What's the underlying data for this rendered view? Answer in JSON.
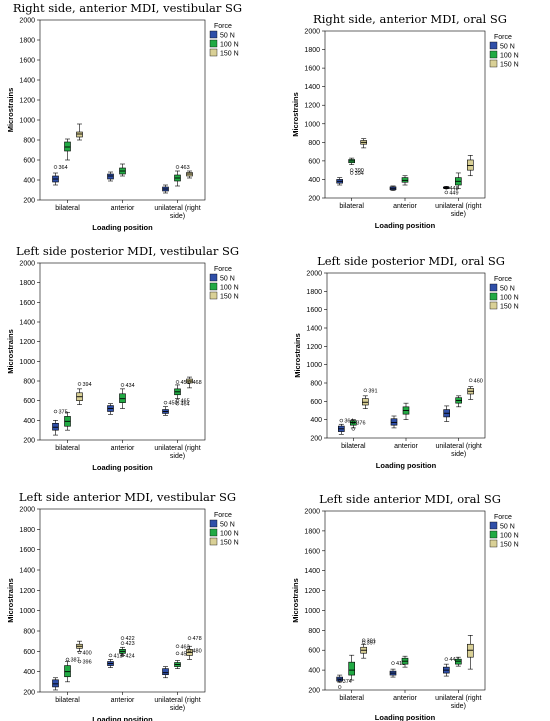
{
  "colors": {
    "50 N": "#2f4fa8",
    "100 N": "#22aa44",
    "150 N": "#d9d096"
  },
  "chart_data": [
    {
      "type": "box",
      "title": "Right side, anterior MDI, vestibular SG",
      "xlabel": "Loading position",
      "ylabel": "Microstrains",
      "ylim": [
        200,
        2000
      ],
      "yticks": [
        200,
        400,
        600,
        800,
        1000,
        1200,
        1400,
        1600,
        1800,
        2000
      ],
      "categories": [
        "bilateral",
        "anterior",
        "unilateral (right side)"
      ],
      "legend_title": "Force",
      "series": [
        {
          "name": "50 N",
          "boxes": [
            {
              "min": 350,
              "q1": 380,
              "median": 410,
              "q3": 440,
              "max": 470,
              "outliers": [
                {
                  "v": 530,
                  "label": "364"
                }
              ]
            },
            {
              "min": 390,
              "q1": 410,
              "median": 440,
              "q3": 460,
              "max": 480,
              "outliers": []
            },
            {
              "min": 270,
              "q1": 290,
              "median": 310,
              "q3": 330,
              "max": 350,
              "outliers": []
            }
          ]
        },
        {
          "name": "100 N",
          "boxes": [
            {
              "min": 600,
              "q1": 690,
              "median": 730,
              "q3": 780,
              "max": 810,
              "outliers": []
            },
            {
              "min": 440,
              "q1": 460,
              "median": 490,
              "q3": 520,
              "max": 560,
              "outliers": []
            },
            {
              "min": 340,
              "q1": 390,
              "median": 420,
              "q3": 450,
              "max": 490,
              "outliers": [
                {
                  "v": 530,
                  "label": "463"
                }
              ]
            }
          ]
        },
        {
          "name": "150 N",
          "boxes": [
            {
              "min": 800,
              "q1": 830,
              "median": 860,
              "q3": 880,
              "max": 960,
              "outliers": []
            },
            null,
            {
              "min": 420,
              "q1": 440,
              "median": 460,
              "q3": 475,
              "max": 490,
              "outliers": []
            }
          ]
        }
      ]
    },
    {
      "type": "box",
      "title": "Right side, anterior MDI, oral SG",
      "xlabel": "Loading position",
      "ylabel": "Microstrains",
      "ylim": [
        200,
        2000
      ],
      "yticks": [
        200,
        400,
        600,
        800,
        1000,
        1200,
        1400,
        1600,
        1800,
        2000
      ],
      "categories": [
        "bilateral",
        "anterior",
        "unilateral (right side)"
      ],
      "legend_title": "Force",
      "series": [
        {
          "name": "50 N",
          "boxes": [
            {
              "min": 340,
              "q1": 360,
              "median": 380,
              "q3": 400,
              "max": 420,
              "outliers": []
            },
            {
              "min": 280,
              "q1": 290,
              "median": 305,
              "q3": 320,
              "max": 330,
              "outliers": []
            },
            {
              "min": 300,
              "q1": 305,
              "median": 310,
              "q3": 318,
              "max": 325,
              "outliers": [
                {
                  "v": 310,
                  "label": "448"
                },
                {
                  "v": 260,
                  "label": "449"
                }
              ]
            }
          ]
        },
        {
          "name": "100 N",
          "boxes": [
            {
              "min": 560,
              "q1": 580,
              "median": 600,
              "q3": 615,
              "max": 630,
              "outliers": [
                {
                  "v": 500,
                  "label": "390"
                },
                {
                  "v": 470,
                  "label": "394"
                }
              ]
            },
            {
              "min": 340,
              "q1": 370,
              "median": 390,
              "q3": 420,
              "max": 440,
              "outliers": []
            },
            {
              "min": 300,
              "q1": 340,
              "median": 380,
              "q3": 420,
              "max": 470,
              "outliers": []
            }
          ]
        },
        {
          "name": "150 N",
          "boxes": [
            {
              "min": 740,
              "q1": 780,
              "median": 800,
              "q3": 820,
              "max": 840,
              "outliers": []
            },
            null,
            {
              "min": 440,
              "q1": 500,
              "median": 550,
              "q3": 610,
              "max": 660,
              "outliers": []
            }
          ]
        }
      ]
    },
    {
      "type": "box",
      "title": "Left side posterior MDI, vestibular SG",
      "xlabel": "Loading position",
      "ylabel": "Microstrains",
      "ylim": [
        200,
        2000
      ],
      "yticks": [
        200,
        400,
        600,
        800,
        1000,
        1200,
        1400,
        1600,
        1800,
        2000
      ],
      "categories": [
        "bilateral",
        "anterior",
        "unilateral (right side)"
      ],
      "legend_title": "Force",
      "series": [
        {
          "name": "50 N",
          "boxes": [
            {
              "min": 250,
              "q1": 300,
              "median": 330,
              "q3": 370,
              "max": 400,
              "outliers": [
                {
                  "v": 490,
                  "label": "375"
                }
              ]
            },
            {
              "min": 460,
              "q1": 490,
              "median": 520,
              "q3": 550,
              "max": 570,
              "outliers": []
            },
            {
              "min": 450,
              "q1": 470,
              "median": 490,
              "q3": 510,
              "max": 540,
              "outliers": [
                {
                  "v": 580,
                  "label": "450"
                }
              ]
            }
          ]
        },
        {
          "name": "100 N",
          "boxes": [
            {
              "min": 300,
              "q1": 340,
              "median": 390,
              "q3": 440,
              "max": 480,
              "outliers": []
            },
            {
              "min": 520,
              "q1": 580,
              "median": 620,
              "q3": 670,
              "max": 720,
              "outliers": [
                {
                  "v": 760,
                  "label": "434"
                }
              ]
            },
            {
              "min": 620,
              "q1": 660,
              "median": 690,
              "q3": 720,
              "max": 760,
              "outliers": [
                {
                  "v": 790,
                  "label": "451"
                },
                {
                  "v": 600,
                  "label": "465"
                },
                {
                  "v": 570,
                  "label": "464"
                }
              ]
            }
          ]
        },
        {
          "name": "150 N",
          "boxes": [
            {
              "min": 560,
              "q1": 600,
              "median": 640,
              "q3": 680,
              "max": 720,
              "outliers": [
                {
                  "v": 770,
                  "label": "394"
                }
              ]
            },
            null,
            {
              "min": 730,
              "q1": 780,
              "median": 800,
              "q3": 820,
              "max": 840,
              "outliers": [
                {
                  "v": 790,
                  "label": "468"
                }
              ]
            }
          ]
        }
      ]
    },
    {
      "type": "box",
      "title": "Left side posterior MDI, oral SG",
      "xlabel": "Loading position",
      "ylabel": "Microstrains",
      "ylim": [
        200,
        2000
      ],
      "yticks": [
        200,
        400,
        600,
        800,
        1000,
        1200,
        1400,
        1600,
        1800,
        2000
      ],
      "categories": [
        "bilateral",
        "anterior",
        "unilateral (right side)"
      ],
      "legend_title": "Force",
      "series": [
        {
          "name": "50 N",
          "boxes": [
            {
              "min": 240,
              "q1": 270,
              "median": 300,
              "q3": 330,
              "max": 350,
              "outliers": [
                {
                  "v": 390,
                  "label": "364"
                }
              ]
            },
            {
              "min": 310,
              "q1": 340,
              "median": 370,
              "q3": 410,
              "max": 440,
              "outliers": []
            },
            {
              "min": 380,
              "q1": 430,
              "median": 470,
              "q3": 510,
              "max": 550,
              "outliers": []
            }
          ]
        },
        {
          "name": "100 N",
          "boxes": [
            {
              "min": 310,
              "q1": 340,
              "median": 370,
              "q3": 390,
              "max": 400,
              "outliers": [
                {
                  "v": 370,
                  "label": "376"
                },
                {
                  "v": 300,
                  "label": ""
                }
              ]
            },
            {
              "min": 400,
              "q1": 460,
              "median": 500,
              "q3": 540,
              "max": 580,
              "outliers": []
            },
            {
              "min": 540,
              "q1": 580,
              "median": 610,
              "q3": 640,
              "max": 660,
              "outliers": []
            }
          ]
        },
        {
          "name": "150 N",
          "boxes": [
            {
              "min": 520,
              "q1": 560,
              "median": 590,
              "q3": 630,
              "max": 660,
              "outliers": [
                {
                  "v": 720,
                  "label": "391"
                }
              ]
            },
            null,
            {
              "min": 620,
              "q1": 680,
              "median": 710,
              "q3": 740,
              "max": 760,
              "outliers": [
                {
                  "v": 830,
                  "label": "460"
                }
              ]
            }
          ]
        }
      ]
    },
    {
      "type": "box",
      "title": "Left side anterior MDI, vestibular SG",
      "xlabel": "Loading position",
      "ylabel": "Microstrains",
      "ylim": [
        200,
        2000
      ],
      "yticks": [
        200,
        400,
        600,
        800,
        1000,
        1200,
        1400,
        1600,
        1800,
        2000
      ],
      "categories": [
        "bilateral",
        "anterior",
        "unilateral (right side)"
      ],
      "legend_title": "Force",
      "series": [
        {
          "name": "50 N",
          "boxes": [
            {
              "min": 220,
              "q1": 250,
              "median": 280,
              "q3": 320,
              "max": 340,
              "outliers": []
            },
            {
              "min": 440,
              "q1": 460,
              "median": 480,
              "q3": 500,
              "max": 520,
              "outliers": [
                {
                  "v": 560,
                  "label": "413"
                }
              ]
            },
            {
              "min": 340,
              "q1": 370,
              "median": 390,
              "q3": 430,
              "max": 450,
              "outliers": []
            }
          ]
        },
        {
          "name": "100 N",
          "boxes": [
            {
              "min": 300,
              "q1": 350,
              "median": 400,
              "q3": 460,
              "max": 500,
              "outliers": [
                {
                  "v": 520,
                  "label": "387"
                }
              ]
            },
            {
              "min": 560,
              "q1": 580,
              "median": 600,
              "q3": 620,
              "max": 640,
              "outliers": [
                {
                  "v": 730,
                  "label": "422"
                },
                {
                  "v": 680,
                  "label": "423"
                },
                {
                  "v": 560,
                  "label": "424"
                }
              ]
            },
            {
              "min": 430,
              "q1": 450,
              "median": 470,
              "q3": 490,
              "max": 510,
              "outliers": [
                {
                  "v": 650,
                  "label": "463"
                },
                {
                  "v": 580,
                  "label": "452"
                }
              ]
            }
          ]
        },
        {
          "name": "150 N",
          "boxes": [
            {
              "min": 600,
              "q1": 630,
              "median": 650,
              "q3": 670,
              "max": 700,
              "outliers": [
                {
                  "v": 590,
                  "label": "400"
                },
                {
                  "v": 500,
                  "label": "396"
                }
              ]
            },
            null,
            {
              "min": 520,
              "q1": 560,
              "median": 590,
              "q3": 620,
              "max": 650,
              "outliers": [
                {
                  "v": 730,
                  "label": "478"
                },
                {
                  "v": 610,
                  "label": "480"
                }
              ]
            }
          ]
        }
      ]
    },
    {
      "type": "box",
      "title": "Left side anterior MDI, oral SG",
      "xlabel": "Loading position",
      "ylabel": "Microstrains",
      "ylim": [
        200,
        2000
      ],
      "yticks": [
        200,
        400,
        600,
        800,
        1000,
        1200,
        1400,
        1600,
        1800,
        2000
      ],
      "categories": [
        "bilateral",
        "anterior",
        "unilateral (right side)"
      ],
      "legend_title": "Force",
      "series": [
        {
          "name": "50 N",
          "boxes": [
            {
              "min": 280,
              "q1": 290,
              "median": 310,
              "q3": 330,
              "max": 350,
              "outliers": [
                {
                  "v": 290,
                  "label": "374"
                },
                {
                  "v": 230,
                  "label": ""
                }
              ]
            },
            {
              "min": 330,
              "q1": 350,
              "median": 370,
              "q3": 390,
              "max": 410,
              "outliers": [
                {
                  "v": 470,
                  "label": "413"
                }
              ]
            },
            {
              "min": 340,
              "q1": 370,
              "median": 400,
              "q3": 430,
              "max": 460,
              "outliers": [
                {
                  "v": 510,
                  "label": "447"
                }
              ]
            }
          ]
        },
        {
          "name": "100 N",
          "boxes": [
            {
              "min": 300,
              "q1": 350,
              "median": 400,
              "q3": 480,
              "max": 550,
              "outliers": []
            },
            {
              "min": 430,
              "q1": 460,
              "median": 490,
              "q3": 520,
              "max": 540,
              "outliers": []
            },
            {
              "min": 440,
              "q1": 460,
              "median": 490,
              "q3": 510,
              "max": 530,
              "outliers": []
            }
          ]
        },
        {
          "name": "150 N",
          "boxes": [
            {
              "min": 520,
              "q1": 570,
              "median": 600,
              "q3": 630,
              "max": 660,
              "outliers": [
                {
                  "v": 700,
                  "label": "391"
                },
                {
                  "v": 680,
                  "label": "397"
                }
              ]
            },
            null,
            {
              "min": 410,
              "q1": 530,
              "median": 600,
              "q3": 660,
              "max": 750,
              "outliers": []
            }
          ]
        }
      ]
    }
  ]
}
